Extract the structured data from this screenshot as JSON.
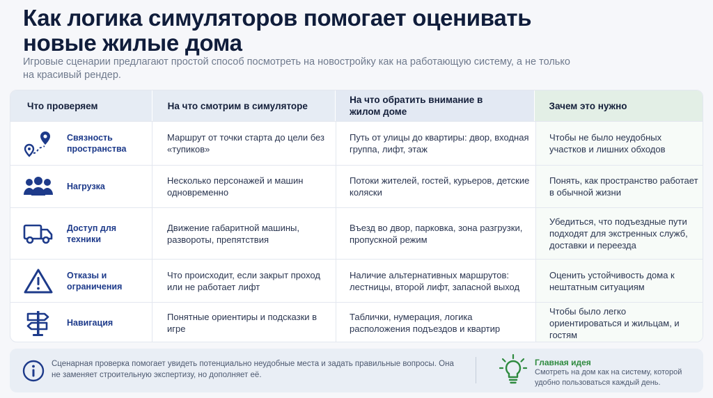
{
  "header": {
    "title": "Как логика симуляторов помогает оценивать новые жилые дома",
    "subtitle": "Игровые сценарии предлагают простой способ посмотреть на новостройку как на работающую систему, а не только на красивый рендер."
  },
  "table": {
    "columns": [
      "Что проверяем",
      "На что смотрим в симуляторе",
      "На что обратить внимание в жилом доме",
      "Зачем это нужно"
    ],
    "rows": [
      {
        "icon": "map-pin-route-icon",
        "category": "Связность пространства",
        "simulator": "Маршрут от точки старта до цели без «тупиков»",
        "house": "Путь от улицы до квартиры: двор, входная группа, лифт, этаж",
        "why": "Чтобы не было неудобных участков и лишних обходов"
      },
      {
        "icon": "people-group-icon",
        "category": "Нагрузка",
        "simulator": "Несколько персонажей и машин одновременно",
        "house": "Потоки жителей, гостей, курьеров, детские коляски",
        "why": "Понять, как пространство работает в обычной жизни"
      },
      {
        "icon": "truck-icon",
        "category": "Доступ для техники",
        "simulator": "Движение габаритной машины, развороты, препятствия",
        "house": "Въезд во двор, парковка, зона разгрузки, пропускной режим",
        "why": "Убедиться, что подъездные пути подходят для экстренных служб, доставки и переезда"
      },
      {
        "icon": "warning-triangle-icon",
        "category": "Отказы и ограничения",
        "simulator": "Что происходит, если закрыт проход или не работает лифт",
        "house": "Наличие альтернативных маршрутов: лестницы, второй лифт, запасной выход",
        "why": "Оценить устойчивость дома к нештатным ситуациям"
      },
      {
        "icon": "signpost-icon",
        "category": "Навигация",
        "simulator": "Понятные ориентиры и подсказки в игре",
        "house": "Таблички, нумерация, логика расположения подъездов и квартир",
        "why": "Чтобы было легко ориентироваться и жильцам, и гостям"
      }
    ]
  },
  "footer": {
    "note": "Сценарная проверка помогает увидеть потенциально неудобные места и задать правильные вопросы. Она не заменяет строительную экспертизу, но дополняет её.",
    "idea_title": "Главная идея",
    "idea_text": "Смотреть на дом как на систему, которой удобно пользоваться каждый день."
  },
  "colors": {
    "accent": "#1d3a8a",
    "idea_green": "#2e8a3e",
    "header_bg": "#e6ecf4"
  }
}
